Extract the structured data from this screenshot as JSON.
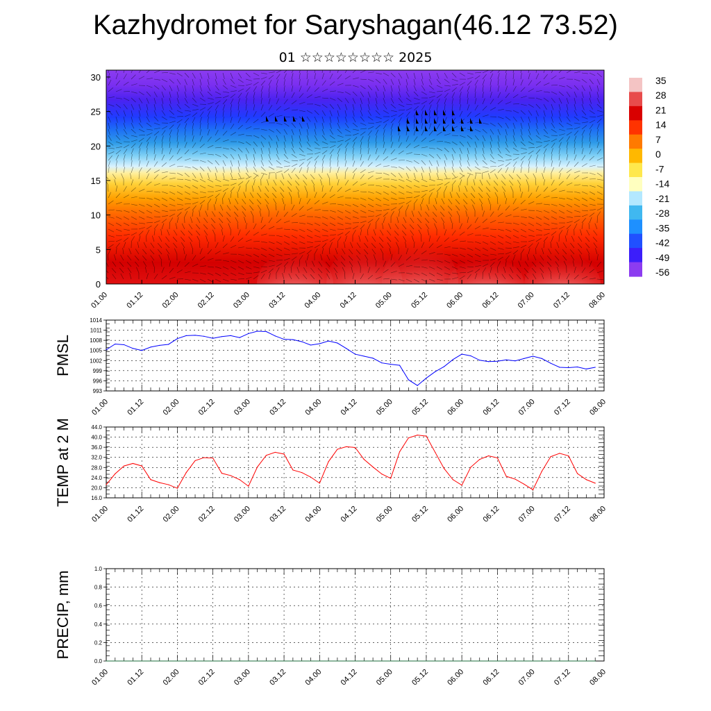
{
  "page": {
    "title": "Kazhydromet for Saryshagan(46.12 73.52)",
    "subtitle": "01 ☆☆☆☆☆☆☆☆ 2025"
  },
  "colors": {
    "pmsl_line": "#0000ff",
    "temp_line": "#ff0000",
    "precip_line": "#1a6b3a",
    "cbar": [
      "#f4c4c4",
      "#e84b4b",
      "#d90000",
      "#ff3300",
      "#ff7a00",
      "#ffb800",
      "#ffe84d",
      "#ffffbf",
      "#b3e8ff",
      "#40b8f0",
      "#1e90ff",
      "#2050ff",
      "#3c1efa",
      "#8c3cf0"
    ]
  },
  "chart_data": [
    {
      "type": "heatmap",
      "title": "",
      "x_ticks": [
        "01.00",
        "01.12",
        "02.00",
        "02.12",
        "03.00",
        "03.12",
        "04.00",
        "04.12",
        "05.00",
        "05.12",
        "06.00",
        "06.12",
        "07.00",
        "07.12",
        "08.00"
      ],
      "y_ticks": [
        "0",
        "5",
        "10",
        "15",
        "20",
        "25",
        "30"
      ],
      "ylim": [
        0,
        31
      ],
      "colorbar_labels": [
        "35",
        "28",
        "21",
        "14",
        "7",
        "0",
        "-7",
        "-14",
        "-21",
        "-28",
        "-35",
        "-42",
        "-49",
        "-56"
      ],
      "colorbar_range": [
        -56,
        35
      ],
      "overlay": "wind barbs"
    },
    {
      "type": "line",
      "ylabel": "PMSL",
      "x_ticks": [
        "01.00",
        "01.12",
        "02.00",
        "02.12",
        "03.00",
        "03.12",
        "04.00",
        "04.12",
        "05.00",
        "05.12",
        "06.00",
        "06.12",
        "07.00",
        "07.12",
        "08.00"
      ],
      "y_ticks": [
        "1014",
        "1011",
        "1008",
        "1005",
        "1002",
        "999",
        "996",
        "993"
      ],
      "ylim": [
        993,
        1014
      ],
      "x": [
        0,
        3,
        6,
        9,
        12,
        15,
        18,
        21,
        24,
        27,
        30,
        33,
        36,
        39,
        42,
        45,
        48,
        51,
        54,
        57,
        60,
        63,
        66,
        69,
        72,
        75,
        78,
        81,
        84,
        87,
        90,
        93,
        96,
        99,
        102,
        105,
        108,
        111,
        114,
        117,
        120,
        123,
        126,
        129,
        132,
        135,
        138,
        141,
        144,
        147,
        150,
        153,
        156,
        159,
        162,
        165
      ],
      "values": [
        1005.2,
        1006.9,
        1006.7,
        1005.6,
        1005.0,
        1006.0,
        1006.5,
        1006.8,
        1008.5,
        1009.4,
        1009.5,
        1009.2,
        1008.6,
        1009.1,
        1009.4,
        1008.8,
        1010.0,
        1010.7,
        1010.6,
        1009.3,
        1008.3,
        1008.2,
        1007.6,
        1006.6,
        1007.0,
        1007.8,
        1007.2,
        1005.6,
        1003.9,
        1003.3,
        1002.7,
        1001.3,
        1000.9,
        1000.6,
        996.3,
        994.6,
        996.8,
        998.7,
        1000.2,
        1002.3,
        1003.9,
        1003.4,
        1002.1,
        1001.7,
        1001.8,
        1002.2,
        1001.9,
        1002.6,
        1003.3,
        1002.6,
        1001.2,
        1000.0,
        999.9,
        1000.1,
        999.5,
        1000.0
      ]
    },
    {
      "type": "line",
      "ylabel": "TEMP at 2 M",
      "x_ticks": [
        "01.00",
        "01.12",
        "02.00",
        "02.12",
        "03.00",
        "03.12",
        "04.00",
        "04.12",
        "05.00",
        "05.12",
        "06.00",
        "06.12",
        "07.00",
        "07.12",
        "08.00"
      ],
      "y_ticks": [
        "44.0",
        "40.0",
        "36.0",
        "32.0",
        "28.0",
        "24.0",
        "20.0",
        "16.0"
      ],
      "ylim": [
        16,
        44
      ],
      "x": [
        0,
        3,
        6,
        9,
        12,
        15,
        18,
        21,
        24,
        27,
        30,
        33,
        36,
        39,
        42,
        45,
        48,
        51,
        54,
        57,
        60,
        63,
        66,
        69,
        72,
        75,
        78,
        81,
        84,
        87,
        90,
        93,
        96,
        99,
        102,
        105,
        108,
        111,
        114,
        117,
        120,
        123,
        126,
        129,
        132,
        135,
        138,
        141,
        144,
        147,
        150,
        153,
        156,
        159,
        162,
        165
      ],
      "values": [
        21.2,
        25.5,
        28.6,
        29.6,
        28.6,
        23.2,
        22.0,
        21.2,
        19.8,
        26.0,
        30.7,
        31.9,
        31.7,
        25.7,
        24.8,
        23.2,
        20.6,
        28.2,
        32.8,
        34.0,
        33.3,
        27.0,
        26.0,
        24.2,
        21.8,
        30.3,
        35.2,
        36.2,
        35.9,
        31.2,
        28.2,
        25.4,
        23.7,
        34.2,
        39.7,
        40.8,
        40.4,
        34.0,
        27.6,
        23.2,
        21.0,
        28.1,
        31.2,
        32.6,
        31.8,
        24.5,
        23.4,
        21.4,
        19.2,
        26.5,
        32.3,
        33.6,
        32.6,
        25.6,
        23.2,
        21.8
      ]
    },
    {
      "type": "line",
      "ylabel": "PRECIP, mm",
      "x_ticks": [
        "01.00",
        "01.12",
        "02.00",
        "02.12",
        "03.00",
        "03.12",
        "04.00",
        "04.12",
        "05.00",
        "05.12",
        "06.00",
        "06.12",
        "07.00",
        "07.12",
        "08.00"
      ],
      "y_ticks": [
        "1.0",
        "0.8",
        "0.6",
        "0.4",
        "0.2",
        "0.0"
      ],
      "ylim": [
        0,
        1
      ],
      "x": [
        0,
        165
      ],
      "values": [
        0.0,
        0.0
      ]
    }
  ]
}
